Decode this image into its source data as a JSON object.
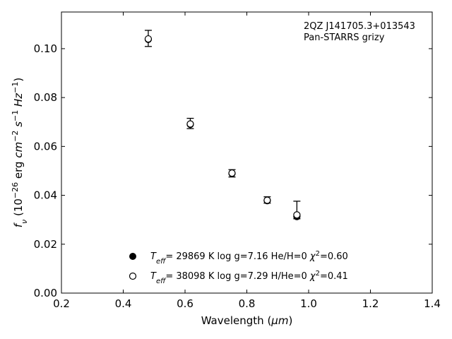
{
  "chart_data": {
    "type": "scatter",
    "title": "",
    "xlabel": "Wavelength (",
    "xlabel_unit": "μm",
    "xlabel_tail": ")",
    "ylabel": {
      "symbol": "f",
      "symbol_sub": "ν",
      "open": " (10",
      "exp1": "−26",
      "unit_a": " erg ",
      "unit_b": "cm",
      "exp2": "−2",
      "unit_c": " s",
      "exp3": "−1",
      "unit_d": " Hz",
      "exp4": "−1",
      "close": ")"
    },
    "xlim": [
      0.2,
      1.4
    ],
    "ylim": [
      0.0,
      0.115
    ],
    "xticks": [
      0.2,
      0.4,
      0.6,
      0.8,
      1.0,
      1.2,
      1.4
    ],
    "xtick_labels": [
      "0.2",
      "0.4",
      "0.6",
      "0.8",
      "1.0",
      "1.2",
      "1.4"
    ],
    "yticks": [
      0.0,
      0.02,
      0.04,
      0.06,
      0.08,
      0.1
    ],
    "ytick_labels": [
      "0.00",
      "0.02",
      "0.04",
      "0.06",
      "0.08",
      "0.10"
    ],
    "grid": false,
    "annotation": [
      "2QZ J141705.3+013543",
      "Pan-STARRS grizy"
    ],
    "observed": {
      "x": [
        0.481,
        0.617,
        0.752,
        0.866,
        0.962
      ],
      "y": [
        0.1042,
        0.0693,
        0.049,
        0.0381,
        0.0314
      ],
      "err_low": [
        0.0033,
        0.002,
        0.0015,
        0.0013,
        0.001
      ],
      "err_high": [
        0.0033,
        0.0022,
        0.0015,
        0.0013,
        0.0062
      ]
    },
    "series": [
      {
        "marker": "filled",
        "x": [
          0.481,
          0.617,
          0.752,
          0.866,
          0.962
        ],
        "y": [
          0.1038,
          0.069,
          0.0489,
          0.0378,
          0.0313
        ],
        "legend": {
          "t": "T",
          "t_sub": "eff",
          "rest": "= 29869 K  log g=7.16  He/H=0  ",
          "chi": "χ",
          "chi_sup": "2",
          "chi_val": "=0.60"
        }
      },
      {
        "marker": "open",
        "x": [
          0.481,
          0.617,
          0.752,
          0.866,
          0.962
        ],
        "y": [
          0.104,
          0.0692,
          0.0491,
          0.038,
          0.032
        ],
        "legend": {
          "t": "T",
          "t_sub": "eff",
          "rest": "= 38098 K  log g=7.29  H/He=0  ",
          "chi": "χ",
          "chi_sup": "2",
          "chi_val": "=0.41"
        }
      }
    ],
    "legend_position": "lower-center"
  }
}
